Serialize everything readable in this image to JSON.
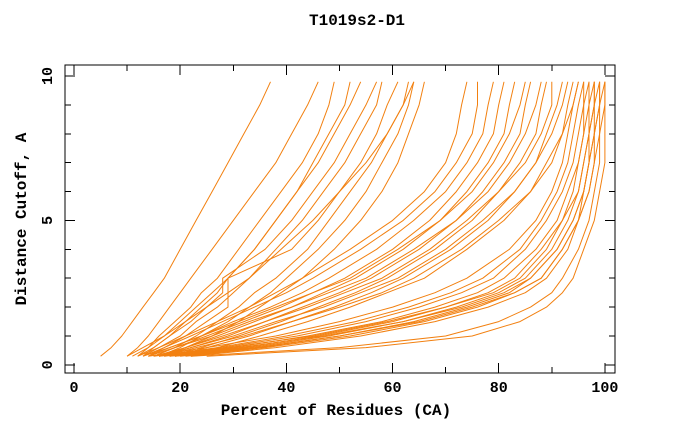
{
  "page": {
    "background": "#ffffff"
  },
  "chart_data": {
    "type": "line",
    "title": "T1019s2-D1",
    "xlabel": "Percent of Residues (CA)",
    "ylabel": "Distance Cutoff, A",
    "xlim": [
      -1.7,
      101.9
    ],
    "ylim": [
      -0.28,
      10.38
    ],
    "x_major_ticks": [
      0,
      20,
      40,
      60,
      80,
      100
    ],
    "x_minor_ticks": [
      10,
      30,
      50,
      70,
      90
    ],
    "y_major_ticks": [
      0,
      5,
      10
    ],
    "y_minor_ticks": [
      1,
      2,
      3,
      4,
      6,
      7,
      8,
      9
    ],
    "grid": false,
    "legend": "none",
    "frame": "box",
    "tick_direction": "in",
    "line_color": "#f28010",
    "frame_color": "#000000",
    "cutoffs": [
      0.3,
      0.6,
      1,
      1.5,
      2,
      2.5,
      3,
      4,
      5,
      6,
      7,
      8,
      9,
      9.8
    ],
    "series_x_at_cutoffs": [
      [
        5,
        7,
        9,
        11,
        13,
        15,
        17,
        20,
        23,
        26,
        29,
        32,
        35,
        37
      ],
      [
        10,
        12,
        14,
        16,
        18,
        20,
        22,
        26,
        30,
        34,
        38,
        41,
        44,
        46
      ],
      [
        12,
        14,
        16,
        19,
        22,
        24,
        27,
        31,
        35,
        39,
        43,
        46,
        48,
        49
      ],
      [
        13,
        15,
        18,
        21,
        24,
        27,
        29,
        34,
        38,
        42,
        45,
        48,
        51,
        52
      ],
      [
        11,
        14,
        17,
        20,
        23,
        26,
        29,
        34,
        38,
        42,
        46,
        49,
        52,
        54
      ],
      [
        12,
        15,
        18,
        22,
        25,
        28,
        28,
        36,
        41,
        45,
        49,
        52,
        55,
        57
      ],
      [
        13,
        16,
        20,
        23,
        27,
        30,
        33,
        38,
        43,
        47,
        51,
        54,
        57,
        58
      ],
      [
        14,
        17,
        21,
        25,
        29,
        29,
        29,
        41,
        46,
        50,
        54,
        57,
        59,
        61
      ],
      [
        15,
        19,
        23,
        27,
        31,
        34,
        38,
        44,
        48,
        52,
        56,
        59,
        62,
        63
      ],
      [
        16,
        20,
        24,
        29,
        33,
        37,
        40,
        46,
        51,
        55,
        58,
        61,
        63,
        64
      ],
      [
        10,
        13,
        17,
        21,
        25,
        29,
        33,
        39,
        45,
        50,
        55,
        59,
        62,
        64
      ],
      [
        17,
        21,
        26,
        31,
        35,
        39,
        43,
        49,
        54,
        58,
        61,
        63,
        65,
        66
      ],
      [
        12,
        16,
        21,
        27,
        33,
        38,
        43,
        52,
        60,
        66,
        70,
        72,
        73,
        74
      ],
      [
        13,
        17,
        22,
        28,
        34,
        40,
        45,
        54,
        62,
        68,
        72,
        75,
        76,
        76
      ],
      [
        14,
        18,
        24,
        30,
        37,
        43,
        48,
        57,
        64,
        70,
        74,
        77,
        78,
        79
      ],
      [
        15,
        19,
        25,
        32,
        39,
        45,
        51,
        60,
        67,
        72,
        76,
        79,
        80,
        81
      ],
      [
        16,
        21,
        27,
        34,
        41,
        47,
        53,
        62,
        69,
        74,
        78,
        81,
        82,
        83
      ],
      [
        13,
        18,
        24,
        31,
        38,
        45,
        52,
        61,
        69,
        75,
        79,
        82,
        84,
        85
      ],
      [
        17,
        22,
        29,
        36,
        43,
        50,
        56,
        65,
        72,
        77,
        81,
        84,
        85,
        86
      ],
      [
        14,
        19,
        26,
        33,
        41,
        48,
        55,
        64,
        72,
        78,
        82,
        85,
        87,
        88
      ],
      [
        18,
        24,
        31,
        39,
        46,
        53,
        59,
        68,
        75,
        80,
        84,
        87,
        88,
        89
      ],
      [
        15,
        21,
        28,
        36,
        44,
        51,
        58,
        67,
        74,
        80,
        85,
        88,
        90,
        90
      ],
      [
        19,
        25,
        33,
        41,
        49,
        56,
        62,
        71,
        78,
        83,
        87,
        89,
        91,
        92
      ],
      [
        16,
        22,
        30,
        38,
        47,
        54,
        61,
        70,
        77,
        83,
        87,
        90,
        92,
        93
      ],
      [
        20,
        27,
        35,
        44,
        52,
        59,
        66,
        74,
        81,
        86,
        89,
        92,
        93,
        94
      ],
      [
        17,
        23,
        32,
        41,
        50,
        58,
        64,
        73,
        80,
        86,
        90,
        92,
        94,
        95
      ],
      [
        14,
        25,
        38,
        50,
        60,
        68,
        74,
        82,
        87,
        90,
        92,
        93,
        94,
        95
      ],
      [
        15,
        27,
        40,
        53,
        63,
        71,
        77,
        84,
        88,
        91,
        93,
        94,
        95,
        96
      ],
      [
        16,
        28,
        42,
        55,
        65,
        73,
        79,
        85,
        89,
        92,
        94,
        95,
        96,
        96
      ],
      [
        17,
        30,
        44,
        58,
        68,
        76,
        81,
        87,
        91,
        93,
        95,
        96,
        96,
        97
      ],
      [
        18,
        32,
        46,
        60,
        70,
        78,
        83,
        88,
        92,
        94,
        95,
        96,
        97,
        97
      ],
      [
        19,
        33,
        48,
        62,
        72,
        80,
        85,
        90,
        93,
        95,
        96,
        97,
        97,
        98
      ],
      [
        20,
        35,
        50,
        64,
        74,
        82,
        86,
        91,
        94,
        96,
        97,
        97,
        98,
        98
      ],
      [
        16,
        29,
        45,
        59,
        70,
        79,
        84,
        89,
        92,
        95,
        96,
        97,
        98,
        98
      ],
      [
        21,
        36,
        52,
        66,
        76,
        83,
        88,
        92,
        95,
        96,
        97,
        98,
        98,
        99
      ],
      [
        18,
        31,
        47,
        62,
        73,
        81,
        86,
        91,
        94,
        96,
        97,
        98,
        99,
        99
      ],
      [
        22,
        38,
        54,
        68,
        78,
        85,
        89,
        93,
        95,
        97,
        98,
        98,
        99,
        99
      ],
      [
        19,
        34,
        50,
        65,
        75,
        83,
        88,
        92,
        95,
        97,
        98,
        99,
        99,
        100
      ],
      [
        22,
        50,
        70,
        80,
        86,
        90,
        92,
        95,
        97,
        98,
        99,
        99,
        100,
        100
      ],
      [
        25,
        55,
        75,
        84,
        89,
        92,
        94,
        96,
        98,
        99,
        100,
        100,
        100,
        100
      ]
    ]
  }
}
